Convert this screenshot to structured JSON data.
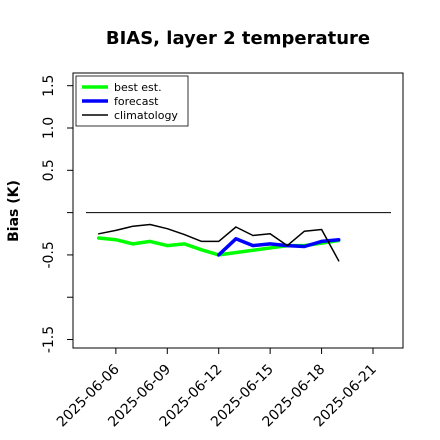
{
  "chart_data": {
    "type": "line",
    "title": "BIAS, layer 2 temperature",
    "xlabel": "",
    "ylabel": "Bias (K)",
    "x_tick_labels": [
      "2025-06-06",
      "2025-06-09",
      "2025-06-12",
      "2025-06-15",
      "2025-06-18",
      "2025-06-21"
    ],
    "x_tick_highlight": {
      "label": "2025-06-12",
      "color": "#228B22"
    },
    "y_ticks": [
      1.5,
      1.0,
      0.5,
      0.0,
      -0.5,
      -1.0,
      -1.5
    ],
    "y_tick_labels": [
      "1.5",
      "1.0",
      "0.5",
      "",
      "-0.5",
      "",
      "-1.5"
    ],
    "ylim": [
      -1.6,
      1.65
    ],
    "x_range": [
      "2025-06-03T12:00",
      "2025-06-22T18:00"
    ],
    "zero_line": 0.0,
    "legend_position": "upper-left",
    "grid": false,
    "series": [
      {
        "name": "best est.",
        "color": "#00ff00",
        "width": 3.5,
        "x": [
          "2025-06-05",
          "2025-06-06",
          "2025-06-07",
          "2025-06-08",
          "2025-06-09",
          "2025-06-10",
          "2025-06-11",
          "2025-06-12",
          "2025-06-16",
          "2025-06-17",
          "2025-06-18",
          "2025-06-19"
        ],
        "y": [
          -0.3,
          -0.32,
          -0.37,
          -0.34,
          -0.39,
          -0.37,
          -0.44,
          -0.5,
          -0.39,
          -0.39,
          -0.36,
          -0.33
        ]
      },
      {
        "name": "forecast",
        "color": "#0000ff",
        "width": 3.5,
        "x": [
          "2025-06-12",
          "2025-06-13",
          "2025-06-14",
          "2025-06-15",
          "2025-06-16",
          "2025-06-17",
          "2025-06-18",
          "2025-06-19"
        ],
        "y": [
          -0.5,
          -0.31,
          -0.39,
          -0.37,
          -0.39,
          -0.4,
          -0.34,
          -0.32
        ]
      },
      {
        "name": "climatology",
        "color": "#000000",
        "width": 1.5,
        "x": [
          "2025-06-05",
          "2025-06-06",
          "2025-06-07",
          "2025-06-08",
          "2025-06-09",
          "2025-06-10",
          "2025-06-11",
          "2025-06-12",
          "2025-06-13",
          "2025-06-14",
          "2025-06-15",
          "2025-06-16",
          "2025-06-17",
          "2025-06-18",
          "2025-06-19"
        ],
        "y": [
          -0.25,
          -0.21,
          -0.16,
          -0.14,
          -0.19,
          -0.26,
          -0.34,
          -0.34,
          -0.17,
          -0.27,
          -0.25,
          -0.39,
          -0.22,
          -0.2,
          -0.57
        ]
      }
    ]
  }
}
